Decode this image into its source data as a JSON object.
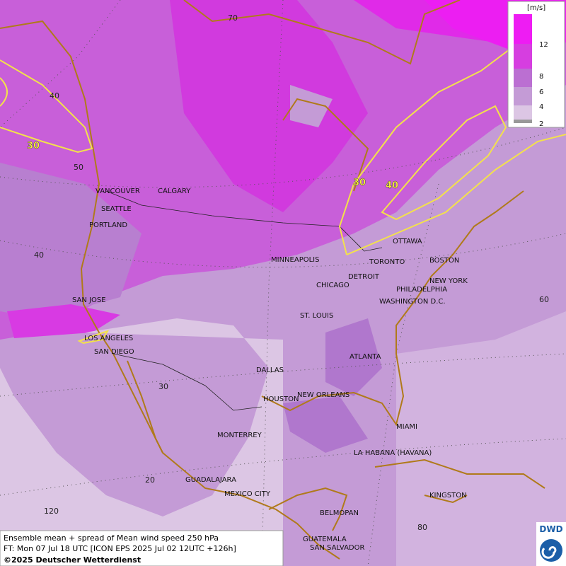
{
  "map": {
    "legend": {
      "unit": "[m/s]",
      "labels": [
        "12",
        "8",
        "6",
        "4",
        "2"
      ]
    },
    "cities": [
      "VANCOUVER",
      "CALGARY",
      "SEATTLE",
      "PORTLAND",
      "MINNEAPOLIS",
      "OTTAWA",
      "TORONTO",
      "BOSTON",
      "DETROIT",
      "CHICAGO",
      "NEW YORK",
      "PHILADELPHIA",
      "WASHINGTON D.C.",
      "SAN JOSE",
      "ST. LOUIS",
      "LOS ANGELES",
      "SAN DIEGO",
      "ATLANTA",
      "DALLAS",
      "HOUSTON",
      "NEW ORLEANS",
      "MIAMI",
      "MONTERREY",
      "LA HABANA (HAVANA)",
      "GUADALAJARA",
      "MEXICO CITY",
      "KINGSTON",
      "BELMOPAN",
      "GUATEMALA",
      "SAN SALVADOR"
    ],
    "graticule_labels": [
      "70",
      "40",
      "50",
      "40",
      "30",
      "20",
      "120",
      "60",
      "80"
    ],
    "contour_labels": [
      "30",
      "30",
      "40"
    ],
    "footer": {
      "line1": "Ensemble mean + spread of Mean wind speed 250 hPa",
      "line2": "FT: Mon 07 Jul 18 UTC [ICON EPS 2025 Jul 02 12UTC +126h]",
      "copyright": "©2025 Deutscher Wetterdienst"
    },
    "logo": "DWD"
  }
}
